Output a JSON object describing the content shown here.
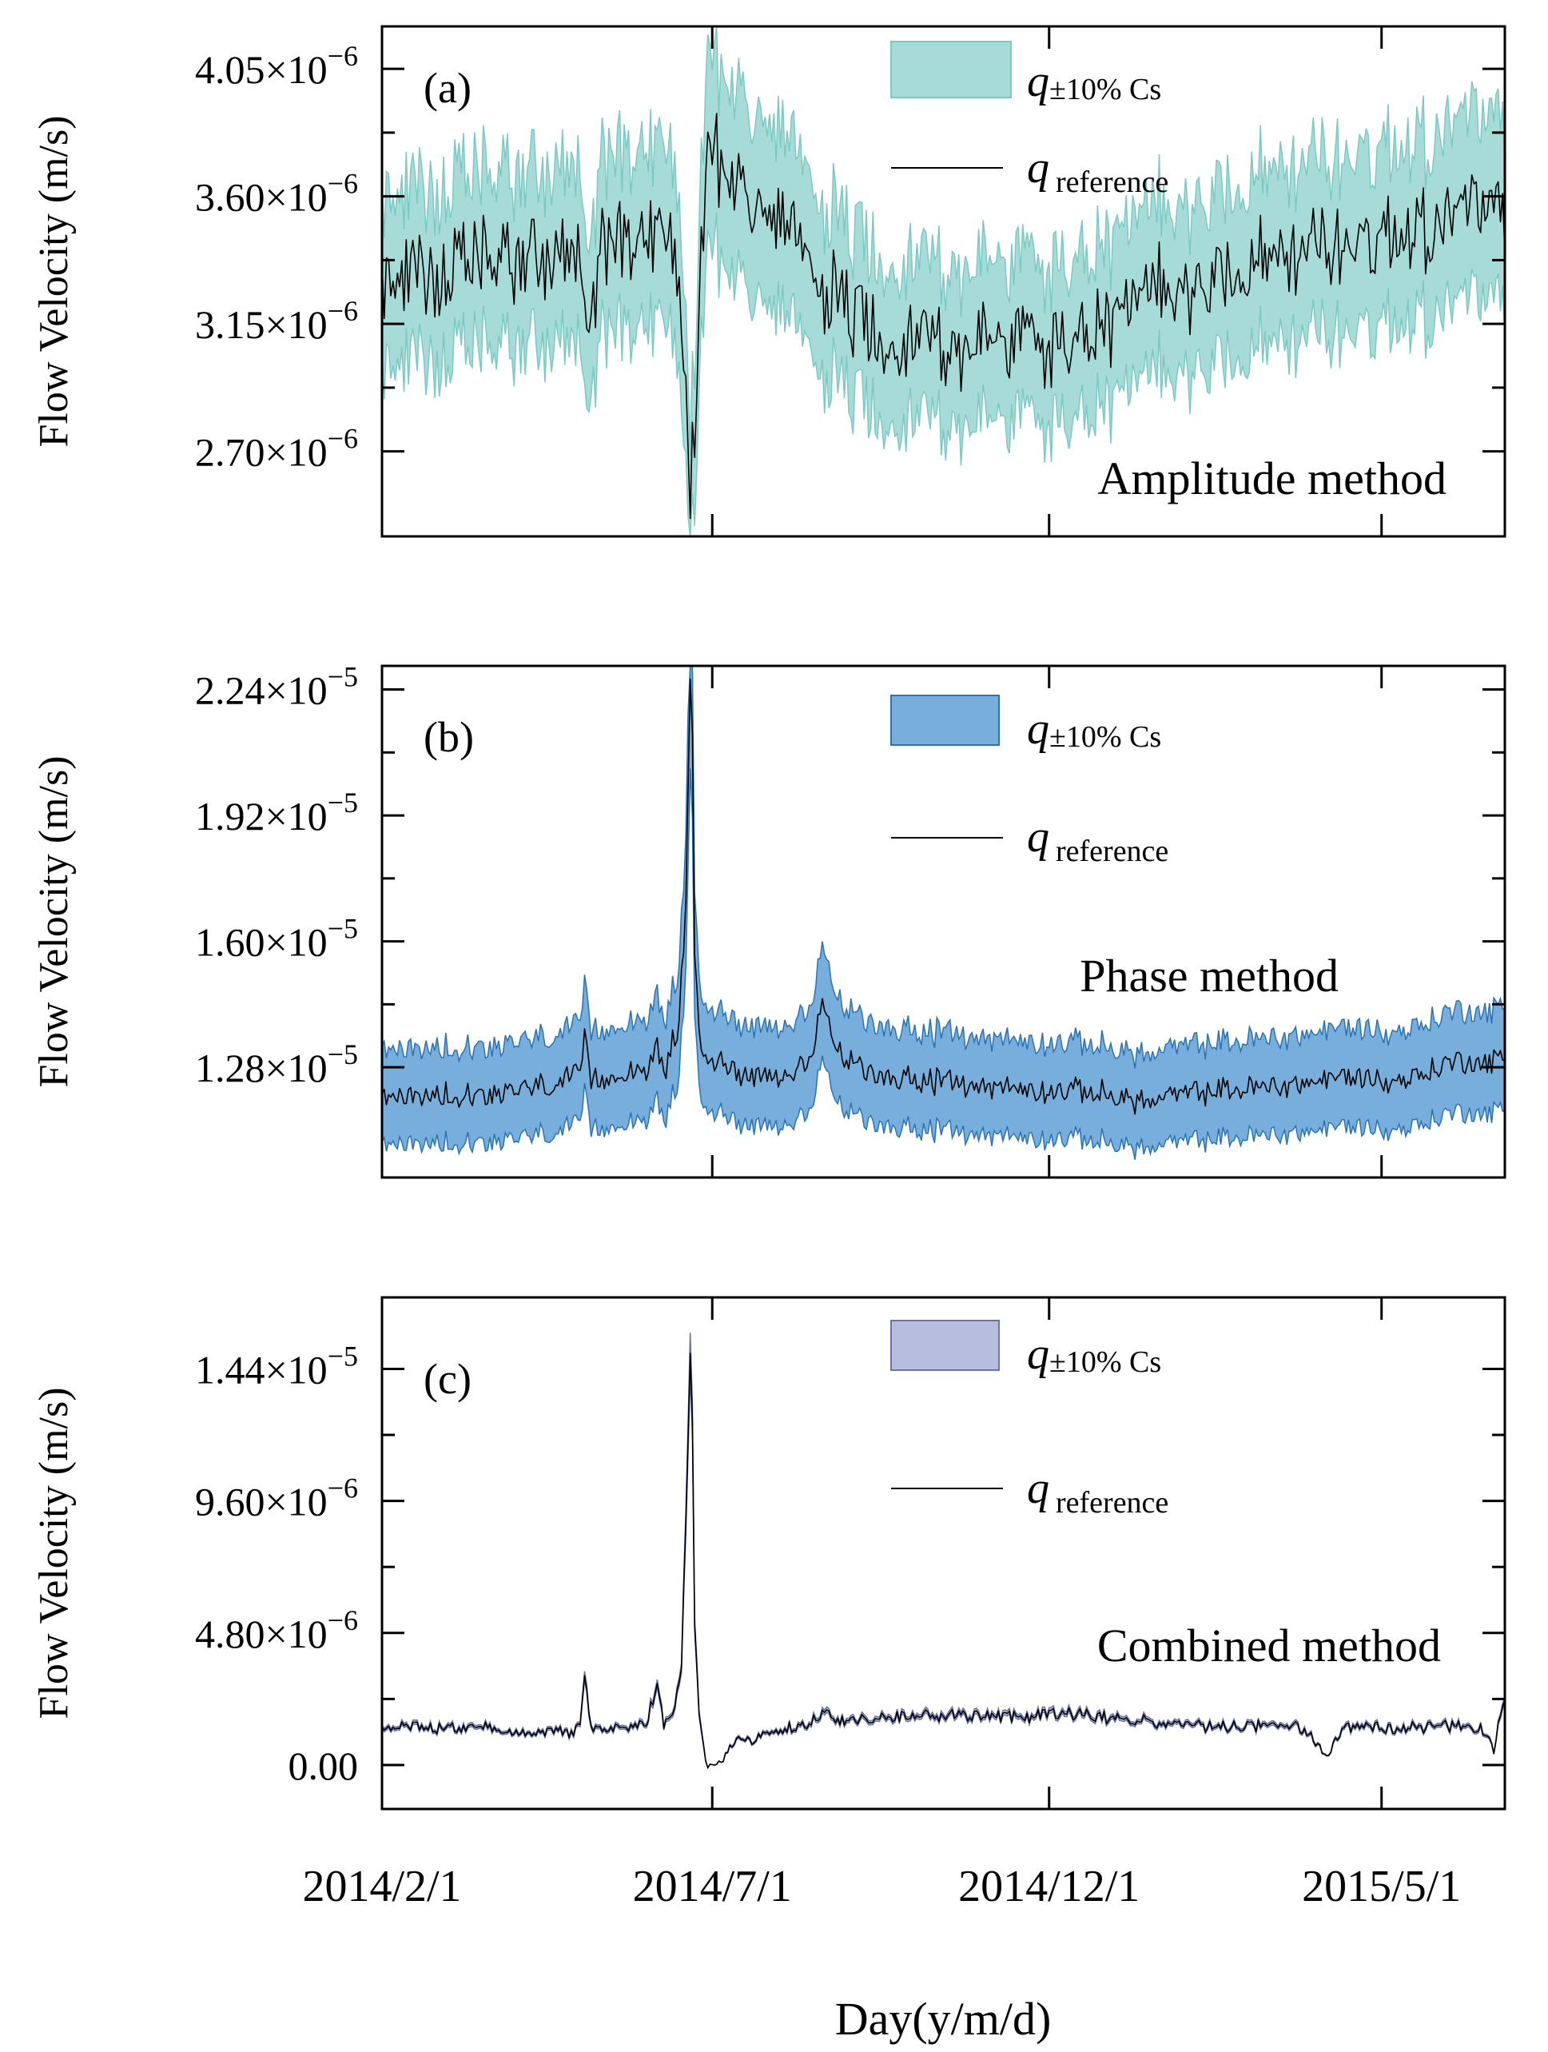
{
  "figure": {
    "x_axis_label": "Day(y/m/d)",
    "x_tick_labels": [
      "2014/2/1",
      "2014/7/1",
      "2014/12/1",
      "2015/5/1"
    ]
  },
  "chart_data": [
    {
      "id": "a",
      "type": "area",
      "panel_label": "(a)",
      "method_label": "Amplitude method",
      "ylabel": "Flow Velocity (m/s)",
      "yticks": [
        {
          "label": "4.05×10",
          "exp": "−6",
          "value": 4.05e-06
        },
        {
          "label": "3.60×10",
          "exp": "−6",
          "value": 3.6e-06
        },
        {
          "label": "3.15×10",
          "exp": "−6",
          "value": 3.15e-06
        },
        {
          "label": "2.70×10",
          "exp": "−6",
          "value": 2.7e-06
        }
      ],
      "ylim": [
        2.4e-06,
        4.2e-06
      ],
      "xlim": [
        0,
        510
      ],
      "x_tick_days": [
        0,
        150,
        303,
        454
      ],
      "band_color": "#a6dbd8",
      "band_edge_color": "#7cc9c4",
      "band_fraction": 0.09,
      "legend": {
        "band_symbol": "q",
        "band_sub": "±10% Cs",
        "line_symbol": "q",
        "line_sub": "reference"
      },
      "series": [
        {
          "name": "q reference",
          "day": [
            0,
            20,
            40,
            60,
            80,
            90,
            95,
            100,
            110,
            120,
            130,
            135,
            137,
            140,
            143,
            145,
            148,
            150,
            155,
            160,
            170,
            180,
            190,
            200,
            210,
            220,
            230,
            240,
            250,
            260,
            270,
            280,
            290,
            300,
            310,
            320,
            330,
            340,
            350,
            360,
            370,
            380,
            390,
            400,
            410,
            420,
            430,
            440,
            450,
            460,
            470,
            480,
            490,
            500,
            510
          ],
          "value": [
            3.3e-06,
            3.32e-06,
            3.36e-06,
            3.38e-06,
            3.4e-06,
            3.35e-06,
            3.1e-06,
            3.42e-06,
            3.45e-06,
            3.48e-06,
            3.5e-06,
            3.3e-06,
            2.95e-06,
            2.6e-06,
            2.9e-06,
            3.4e-06,
            3.9e-06,
            3.8e-06,
            3.7e-06,
            3.65e-06,
            3.55e-06,
            3.5e-06,
            3.4e-06,
            3.3e-06,
            3.2e-06,
            3.15e-06,
            3.1e-06,
            3.12e-06,
            3.1e-06,
            3.08e-06,
            3.05e-06,
            3.1e-06,
            3.12e-06,
            3.05e-06,
            3.1e-06,
            3.1e-06,
            3.15e-06,
            3.2e-06,
            3.25e-06,
            3.28e-06,
            3.3e-06,
            3.32e-06,
            3.35e-06,
            3.38e-06,
            3.4e-06,
            3.4e-06,
            3.42e-06,
            3.45e-06,
            3.45e-06,
            3.48e-06,
            3.5e-06,
            3.52e-06,
            3.55e-06,
            3.6e-06,
            3.5e-06
          ],
          "noise_amplitude": 1.3e-07
        }
      ]
    },
    {
      "id": "b",
      "type": "area",
      "panel_label": "(b)",
      "method_label": "Phase method",
      "ylabel": "Flow Velocity (m/s)",
      "yticks": [
        {
          "label": "2.24×10",
          "exp": "−5",
          "value": 2.24e-05
        },
        {
          "label": "1.92×10",
          "exp": "−5",
          "value": 1.92e-05
        },
        {
          "label": "1.60×10",
          "exp": "−5",
          "value": 1.6e-05
        },
        {
          "label": "1.28×10",
          "exp": "−5",
          "value": 1.28e-05
        }
      ],
      "ylim": [
        1e-05,
        2.3e-05
      ],
      "xlim": [
        0,
        510
      ],
      "x_tick_days": [
        0,
        150,
        303,
        454
      ],
      "band_color": "#78aedb",
      "band_edge_color": "#2a72b4",
      "band_fraction": 0.1,
      "legend": {
        "band_symbol": "q",
        "band_sub": "±10% Cs",
        "line_symbol": "q",
        "line_sub": "reference"
      },
      "series": [
        {
          "name": "q reference",
          "day": [
            0,
            30,
            60,
            80,
            90,
            92,
            95,
            100,
            120,
            125,
            128,
            130,
            135,
            138,
            140,
            141,
            142,
            145,
            150,
            160,
            180,
            195,
            200,
            205,
            210,
            220,
            240,
            260,
            280,
            300,
            320,
            340,
            350,
            360,
            380,
            400,
            420,
            430,
            440,
            450,
            460,
            470,
            480,
            490,
            500,
            510
          ],
          "value": [
            1.2e-05,
            1.21e-05,
            1.22e-05,
            1.24e-05,
            1.26e-05,
            1.35e-05,
            1.24e-05,
            1.25e-05,
            1.28e-05,
            1.32e-05,
            1.26e-05,
            1.3e-05,
            1.4e-05,
            1.7e-05,
            2.28e-05,
            2.1e-05,
            1.55e-05,
            1.32e-05,
            1.3e-05,
            1.27e-05,
            1.26e-05,
            1.28e-05,
            1.45e-05,
            1.35e-05,
            1.3e-05,
            1.27e-05,
            1.25e-05,
            1.24e-05,
            1.23e-05,
            1.22e-05,
            1.22e-05,
            1.2e-05,
            1.19e-05,
            1.21e-05,
            1.22e-05,
            1.23e-05,
            1.24e-05,
            1.25e-05,
            1.26e-05,
            1.25e-05,
            1.24e-05,
            1.26e-05,
            1.28e-05,
            1.3e-05,
            1.29e-05,
            1.3e-05
          ],
          "noise_amplitude": 2.6e-07
        }
      ]
    },
    {
      "id": "c",
      "type": "area",
      "panel_label": "(c)",
      "method_label": "Combined method",
      "ylabel": "Flow Velocity (m/s)",
      "yticks": [
        {
          "label": "1.44×10",
          "exp": "−5",
          "value": 1.44e-05
        },
        {
          "label": "9.60×10",
          "exp": "−6",
          "value": 9.6e-06
        },
        {
          "label": "4.80×10",
          "exp": "−6",
          "value": 4.8e-06
        },
        {
          "label": "0.00",
          "exp": "",
          "value": 0
        }
      ],
      "ylim": [
        -1.6e-06,
        1.7e-05
      ],
      "xlim": [
        0,
        510
      ],
      "x_tick_days": [
        0,
        150,
        303,
        454
      ],
      "band_color": "#b7bedd",
      "band_edge_color": "#6b73a8",
      "band_fraction": 0.05,
      "legend": {
        "band_symbol": "q",
        "band_sub": "±10% Cs",
        "line_symbol": "q",
        "line_sub": "reference"
      },
      "series": [
        {
          "name": "q reference",
          "day": [
            0,
            40,
            60,
            85,
            90,
            92,
            95,
            100,
            120,
            125,
            128,
            132,
            136,
            138,
            140,
            141,
            142,
            144,
            147,
            150,
            160,
            180,
            195,
            200,
            210,
            230,
            250,
            270,
            290,
            300,
            320,
            340,
            360,
            380,
            400,
            420,
            430,
            435,
            440,
            460,
            480,
            500,
            505,
            510
          ],
          "value": [
            1.3e-06,
            1.4e-06,
            1.2e-06,
            1.2e-06,
            1.4e-06,
            3.5e-06,
            1.4e-06,
            1.3e-06,
            1.5e-06,
            3e-06,
            1.5e-06,
            1.8e-06,
            3.5e-06,
            9e-06,
            1.48e-05,
            1.25e-05,
            5e-06,
            2e-06,
            2e-07,
            -2e-07,
            8e-07,
            1.2e-06,
            1.5e-06,
            1.9e-06,
            1.6e-06,
            1.7e-06,
            1.8e-06,
            1.8e-06,
            1.7e-06,
            1.9e-06,
            1.8e-06,
            1.6e-06,
            1.5e-06,
            1.4e-06,
            1.4e-06,
            1.3e-06,
            2e-07,
            1.2e-06,
            1.4e-06,
            1.3e-06,
            1.4e-06,
            1.3e-06,
            6e-07,
            2.5e-06
          ],
          "noise_amplitude": 1.8e-07
        }
      ]
    }
  ]
}
